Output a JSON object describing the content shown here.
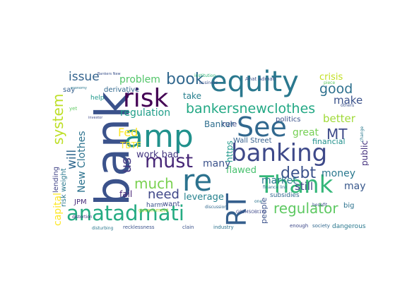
{
  "words": [
    {
      "text": "bank",
      "color": "#3b528b"
    },
    {
      "text": "amp",
      "color": "#21918c"
    },
    {
      "text": "equity",
      "color": "#2a788e"
    },
    {
      "text": "See",
      "color": "#31688e"
    },
    {
      "text": "RT",
      "color": "#355f8d"
    },
    {
      "text": "re",
      "color": "#2c728e"
    },
    {
      "text": "risk",
      "color": "#440154"
    },
    {
      "text": "banking",
      "color": "#3e4989"
    },
    {
      "text": "Thank",
      "color": "#35b779"
    },
    {
      "text": "anatadmati",
      "color": "#25ab82"
    },
    {
      "text": "must",
      "color": "#482878"
    },
    {
      "text": "bankersnewclothes",
      "color": "#22a884"
    },
    {
      "text": "regulator",
      "color": "#5ec962"
    },
    {
      "text": "book",
      "color": "#31688e"
    },
    {
      "text": "system",
      "color": "#bddf26"
    },
    {
      "text": "issue",
      "color": "#33638d"
    },
    {
      "text": "debt",
      "color": "#3b528b"
    },
    {
      "text": "MT",
      "color": "#3e4a89"
    },
    {
      "text": "good",
      "color": "#2d708e"
    },
    {
      "text": "much",
      "color": "#7ad151"
    },
    {
      "text": "need",
      "color": "#3f4788"
    },
    {
      "text": "Fed",
      "color": "#fde725"
    },
    {
      "text": "will",
      "color": "#31688e"
    },
    {
      "text": "us",
      "color": "#443983"
    },
    {
      "text": "regulation",
      "color": "#1f9e89"
    },
    {
      "text": "problem",
      "color": "#52c569"
    },
    {
      "text": "make",
      "color": "#3b528b"
    },
    {
      "text": "better",
      "color": "#a0da39"
    },
    {
      "text": "great",
      "color": "#75d054"
    },
    {
      "text": "crisis",
      "color": "#c2df23"
    },
    {
      "text": "New Clothes",
      "color": "#2c728e"
    },
    {
      "text": "capital",
      "color": "#fde725"
    },
    {
      "text": "still",
      "color": "#404688"
    },
    {
      "text": "money",
      "color": "#2a788e"
    },
    {
      "text": "may",
      "color": "#38588c"
    },
    {
      "text": "flawed",
      "color": "#48c16e"
    },
    {
      "text": "leverage",
      "color": "#26828e"
    },
    {
      "text": "work bad",
      "color": "#453781"
    },
    {
      "text": "many",
      "color": "#3b528b"
    },
    {
      "text": "market",
      "color": "#2a788e"
    },
    {
      "text": "https",
      "color": "#1f988b"
    },
    {
      "text": "public",
      "color": "#46327e"
    },
    {
      "text": "take",
      "color": "#277f8e"
    },
    {
      "text": "Banker",
      "color": "#2e6e8e"
    },
    {
      "text": "rule",
      "color": "#3d4e8a"
    },
    {
      "text": "Wall Street",
      "color": "#355f8d"
    },
    {
      "text": "politics",
      "color": "#3b528b"
    },
    {
      "text": "financial",
      "color": "#21918c"
    },
    {
      "text": "TBTF",
      "color": "#fde725"
    },
    {
      "text": "fail",
      "color": "#482576"
    },
    {
      "text": "derivative",
      "color": "#31688e"
    },
    {
      "text": "people",
      "color": "#3b528b"
    },
    {
      "text": "lending",
      "color": "#414487"
    },
    {
      "text": "risk weight",
      "color": "#2a788e"
    },
    {
      "text": "JPM",
      "color": "#472d7b"
    },
    {
      "text": "harm",
      "color": "#3b528b"
    },
    {
      "text": "say",
      "color": "#355f8d"
    },
    {
      "text": "help",
      "color": "#1f988b"
    },
    {
      "text": "want",
      "color": "#3e4989"
    },
    {
      "text": "big",
      "color": "#2c728e"
    },
    {
      "text": "dangerous",
      "color": "#2a788e"
    },
    {
      "text": "subsidies",
      "color": "#31688e"
    },
    {
      "text": "government",
      "color": "#addc30"
    },
    {
      "text": "recklessness",
      "color": "#3b528b"
    },
    {
      "text": "clain",
      "color": "#3b528b"
    },
    {
      "text": "industry",
      "color": "#2c728e"
    },
    {
      "text": "society",
      "color": "#31688e"
    },
    {
      "text": "enough",
      "color": "#3e4989"
    },
    {
      "text": "disturbing",
      "color": "#2a788e"
    },
    {
      "text": "distortion",
      "color": "#46337f"
    },
    {
      "text": "business",
      "color": "#3b528b"
    },
    {
      "text": "institution",
      "color": "#35b779"
    },
    {
      "text": "Anat Admati",
      "color": "#3b528b"
    },
    {
      "text": "economy",
      "color": "#2a788e"
    },
    {
      "text": "yet",
      "color": "#5ec962"
    },
    {
      "text": "G02MSOBt1W",
      "color": "#3e4989"
    },
    {
      "text": "benefit",
      "color": "#3b528b"
    },
    {
      "text": "finance link",
      "color": "#2c728e"
    },
    {
      "text": "discussion",
      "color": "#31688e"
    },
    {
      "text": "piece",
      "color": "#5ec962"
    },
    {
      "text": "others",
      "color": "#3b528b"
    },
    {
      "text": "change",
      "color": "#2a788e"
    },
    {
      "text": "investor",
      "color": "#3e4989"
    },
    {
      "text": "one",
      "color": "#2c728e"
    },
    {
      "text": "Bankers New",
      "color": "#3b528b"
    }
  ]
}
